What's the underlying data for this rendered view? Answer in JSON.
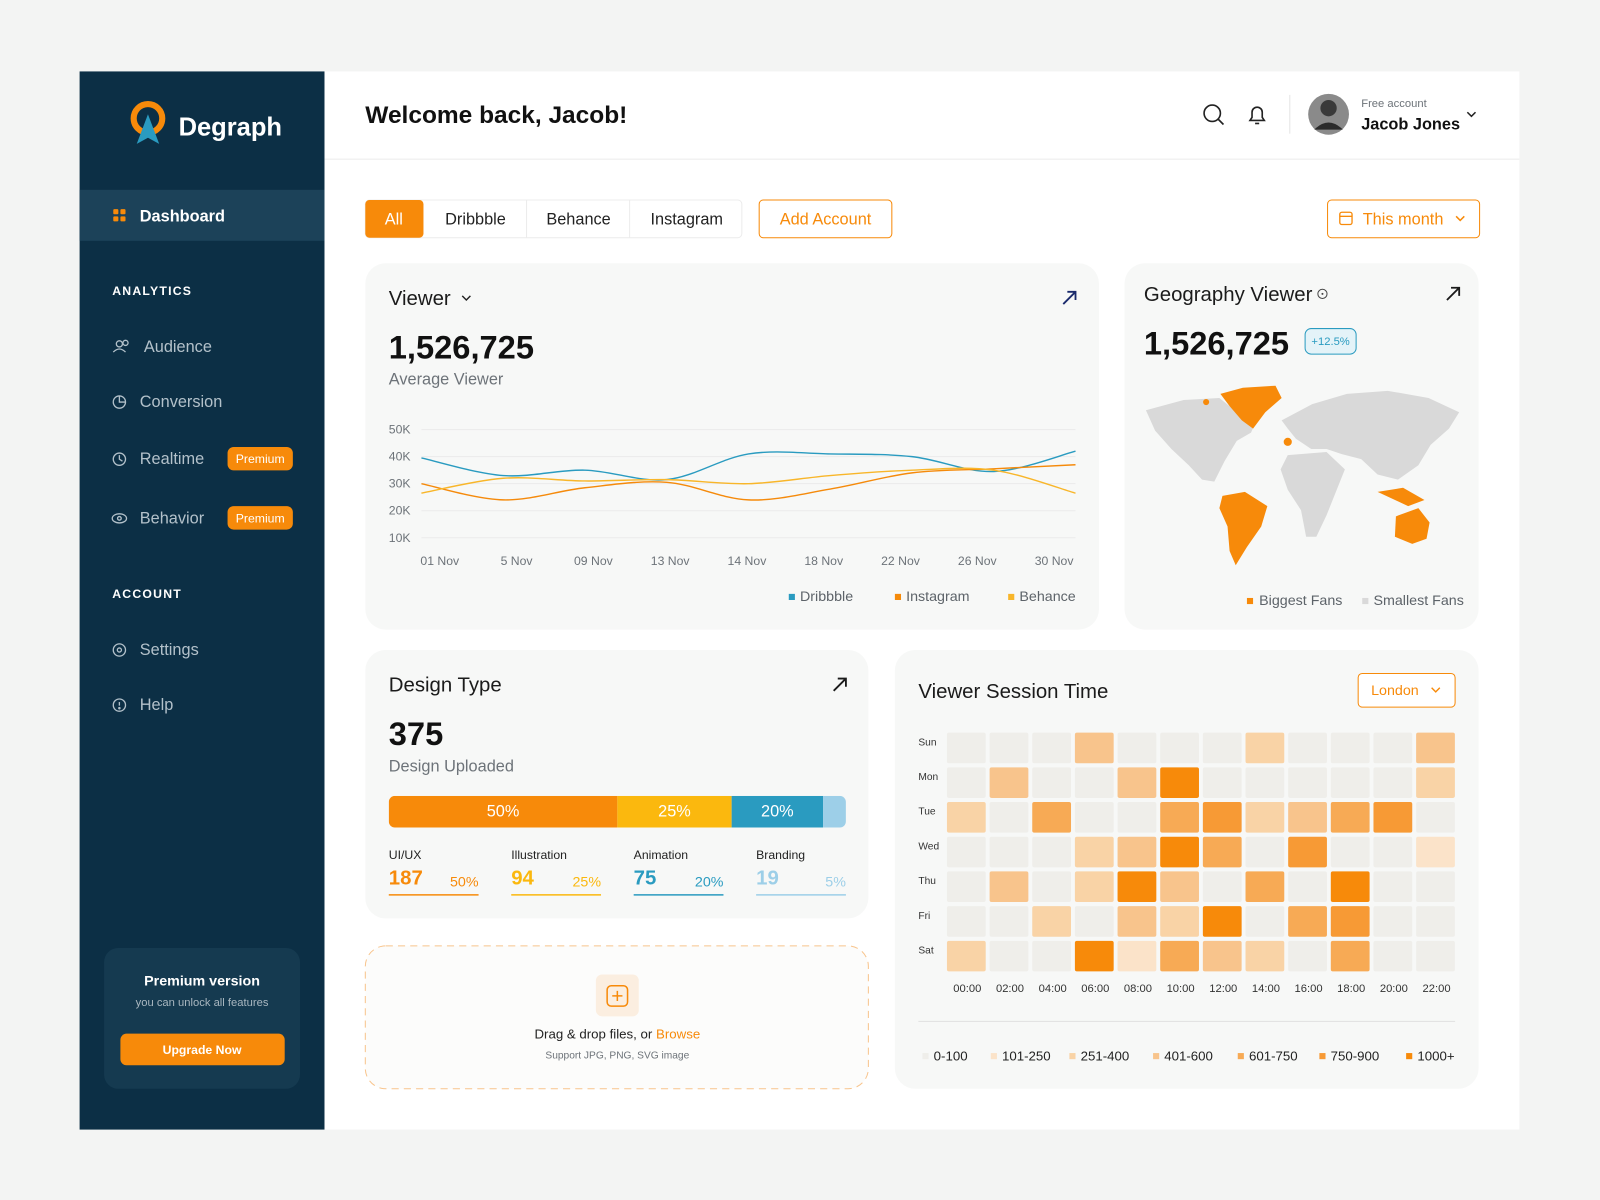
{
  "brand": "Degraph",
  "sidebar": {
    "main": "Dashboard",
    "sections": [
      {
        "title": "ANALYTICS",
        "items": [
          {
            "label": "Audience"
          },
          {
            "label": "Conversion"
          },
          {
            "label": "Realtime",
            "badge": "Premium"
          },
          {
            "label": "Behavior",
            "badge": "Premium"
          }
        ]
      },
      {
        "title": "ACCOUNT",
        "items": [
          {
            "label": "Settings"
          },
          {
            "label": "Help"
          }
        ]
      }
    ],
    "promo": {
      "title": "Premium version",
      "text": "you can unlock all features",
      "button": "Upgrade Now"
    }
  },
  "header": {
    "greeting": "Welcome back, Jacob!",
    "account_type": "Free account",
    "user": "Jacob Jones"
  },
  "tabs": [
    "All",
    "Dribbble",
    "Behance",
    "Instagram"
  ],
  "add_account": "Add Account",
  "period": "This month",
  "geography": {
    "title": "Geography Viewer",
    "total": "1,526,725",
    "change": "+12.5%",
    "legend": [
      "Biggest Fans",
      "Smallest Fans"
    ]
  },
  "upload": {
    "text": "Drag & drop files, or",
    "link": "Browse",
    "note": "Support JPG, PNG, SVG image"
  },
  "chart_data": [
    {
      "type": "line",
      "title": "Viewer",
      "total": "1,526,725",
      "subtitle": "Average Viewer",
      "categories": [
        "01 Nov",
        "5 Nov",
        "09 Nov",
        "13 Nov",
        "14 Nov",
        "18 Nov",
        "22 Nov",
        "26 Nov",
        "30 Nov"
      ],
      "series": [
        {
          "name": "Dribbble",
          "color": "#2a9bc0",
          "values": [
            39500,
            33000,
            35000,
            31500,
            41000,
            41000,
            40000,
            34500,
            42000
          ]
        },
        {
          "name": "Instagram",
          "color": "#f58a0b",
          "values": [
            30000,
            24000,
            28500,
            30500,
            24000,
            28000,
            34000,
            35500,
            37000
          ]
        },
        {
          "name": "Behance",
          "color": "#f8b62a",
          "values": [
            26500,
            32000,
            31000,
            31500,
            30000,
            33000,
            35000,
            35000,
            26500
          ]
        }
      ],
      "ylim": [
        10000,
        50000
      ],
      "yticks": [
        {
          "value": 50000,
          "label": "50K"
        },
        {
          "value": 40000,
          "label": "40K"
        },
        {
          "value": 30000,
          "label": "30K"
        },
        {
          "value": 20000,
          "label": "20K"
        },
        {
          "value": 10000,
          "label": "10K"
        }
      ],
      "grid": true
    },
    {
      "type": "stacked-bar",
      "title": "Design Type",
      "total": "375",
      "subtitle": "Design Uploaded",
      "categories": [
        "UI/UX",
        "Illustration",
        "Animation",
        "Branding"
      ],
      "values": [
        50,
        25,
        20,
        5
      ],
      "value_labels": [
        "50%",
        "25%",
        "20%",
        "5%"
      ],
      "counts": [
        "187",
        "94",
        "75",
        "19"
      ],
      "colors": [
        "#f78a0a",
        "#fbb80e",
        "#2a9bc0",
        "#9dcfe8"
      ]
    },
    {
      "type": "heatmap",
      "title": "Viewer Session Time",
      "filter": "London",
      "rows": [
        "Sun",
        "Mon",
        "Tue",
        "Wed",
        "Thu",
        "Fri",
        "Sat"
      ],
      "columns": [
        "00:00",
        "02:00",
        "04:00",
        "06:00",
        "08:00",
        "10:00",
        "12:00",
        "14:00",
        "16:00",
        "18:00",
        "20:00",
        "22:00"
      ],
      "values": [
        [
          50,
          50,
          50,
          500,
          50,
          50,
          50,
          325,
          50,
          50,
          50,
          500
        ],
        [
          50,
          500,
          50,
          50,
          500,
          1100,
          50,
          50,
          50,
          50,
          50,
          325
        ],
        [
          325,
          50,
          675,
          50,
          50,
          675,
          825,
          325,
          500,
          675,
          825,
          50
        ],
        [
          50,
          50,
          50,
          325,
          500,
          1100,
          675,
          50,
          825,
          50,
          50,
          175
        ],
        [
          50,
          500,
          50,
          325,
          1100,
          500,
          50,
          675,
          50,
          1100,
          50,
          50
        ],
        [
          50,
          50,
          325,
          50,
          500,
          325,
          1100,
          50,
          675,
          825,
          50,
          50
        ],
        [
          325,
          50,
          50,
          1100,
          175,
          675,
          500,
          325,
          50,
          675,
          50,
          50
        ]
      ],
      "legend": [
        {
          "label": "0-100",
          "color": "#efeeea"
        },
        {
          "label": "101-250",
          "color": "#fbe3c9"
        },
        {
          "label": "251-400",
          "color": "#f9d3a6"
        },
        {
          "label": "401-600",
          "color": "#f8c48c"
        },
        {
          "label": "601-750",
          "color": "#f7aa55"
        },
        {
          "label": "750-900",
          "color": "#f79a35"
        },
        {
          "label": "1000+",
          "color": "#f78a0a"
        }
      ]
    }
  ]
}
